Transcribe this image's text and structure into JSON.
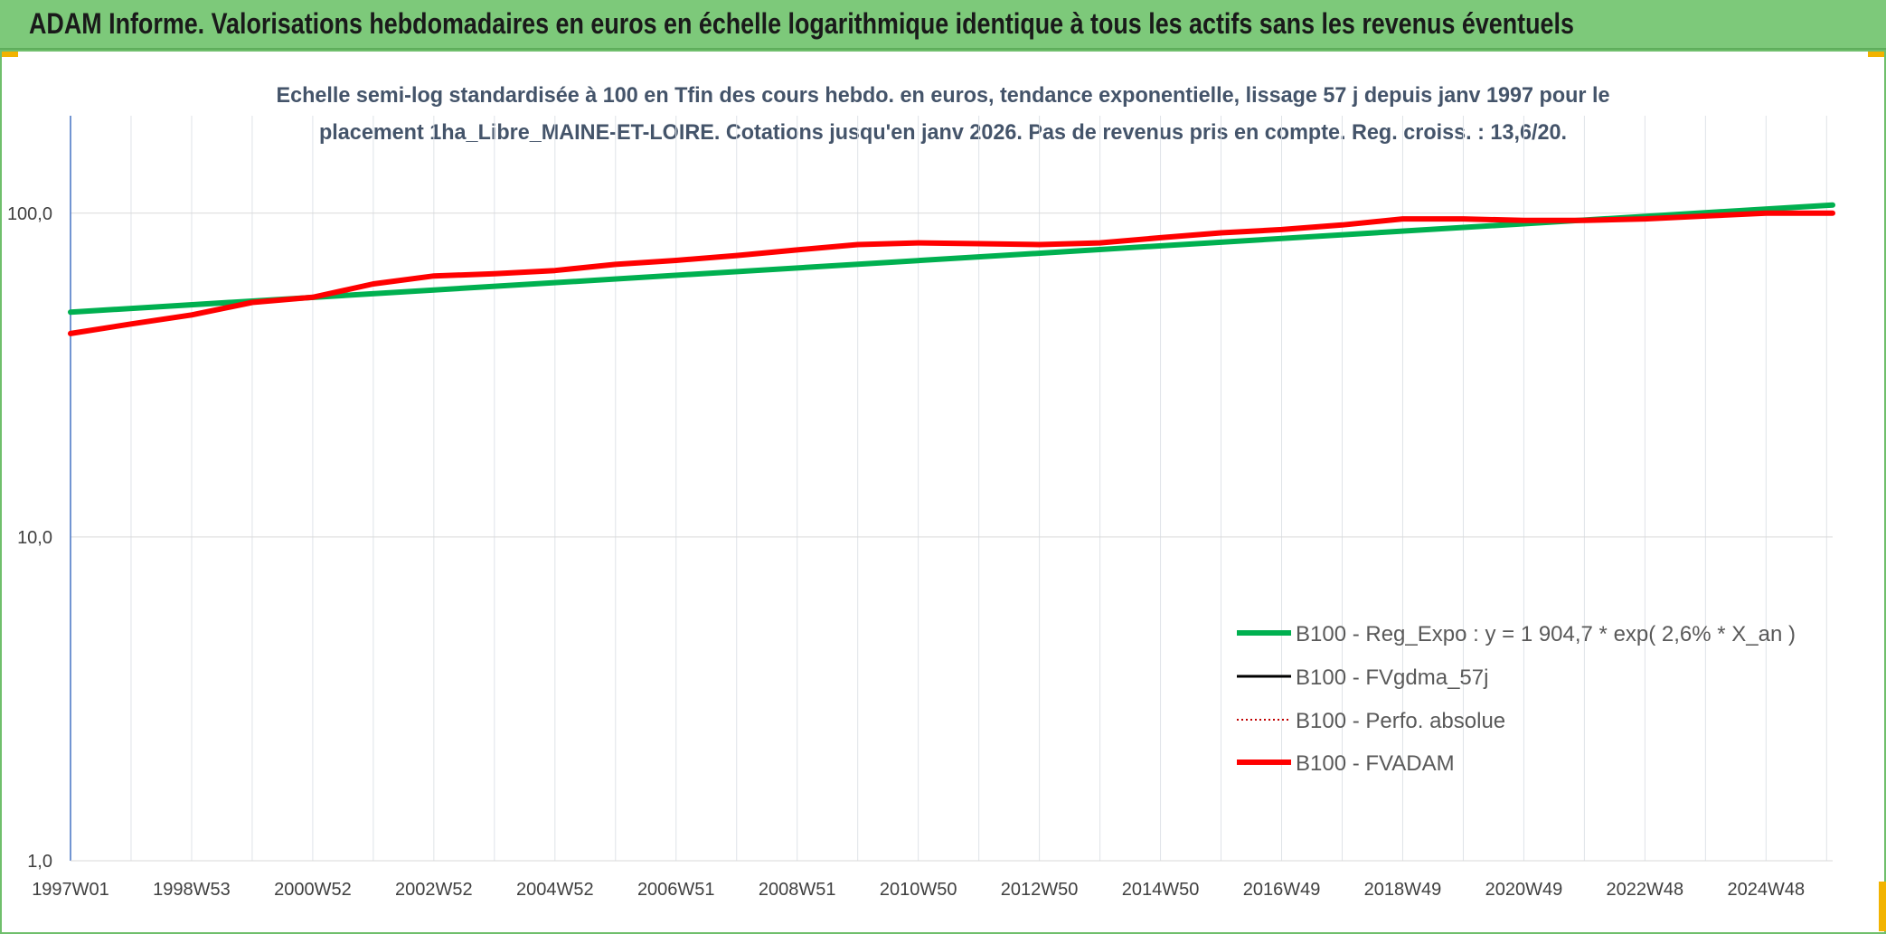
{
  "banner": {
    "title": "ADAM Informe. Valorisations hebdomadaires en euros en échelle logarithmique identique à tous les actifs sans les revenus éventuels"
  },
  "colors": {
    "banner_bg": "#7dc97a",
    "corner_accent": "#f2b300",
    "reg_expo": "#00b050",
    "fvgdma": "#000000",
    "perfo": "#c00000",
    "fvadam": "#ff0000",
    "axis_text": "#404040",
    "title_text": "#44546a"
  },
  "chart_data": {
    "type": "line",
    "title_lines": [
      "Echelle semi-log standardisée à 100 en Tfin des cours hebdo. en euros, tendance exponentielle, lissage 57 j depuis janv 1997 pour le",
      "placement 1ha_Libre_MAINE-ET-LOIRE. Cotations jusqu'en janv 2026. Pas de revenus pris en compte. Reg. croiss. : 13,6/20."
    ],
    "y_scale": "log",
    "ylim": [
      1,
      200
    ],
    "y_ticks": [
      1,
      10,
      100
    ],
    "y_tick_labels": [
      "1,0",
      "10,0",
      "100,0"
    ],
    "xlim": [
      0,
      29.1
    ],
    "x_ticks": [
      0,
      2,
      4,
      6,
      8,
      10,
      12,
      14,
      16,
      18,
      20,
      22,
      24,
      26,
      28
    ],
    "x_tick_labels": [
      "1997W01",
      "1998W53",
      "2000W52",
      "2002W52",
      "2004W52",
      "2006W51",
      "2008W51",
      "2010W50",
      "2012W50",
      "2014W50",
      "2016W49",
      "2018W49",
      "2020W49",
      "2022W48",
      "2024W48"
    ],
    "legend_position": "bottom-right",
    "series": [
      {
        "name": "B100 - Reg_Expo : y = 1 904,7 * exp( 2,6% *  X_an )",
        "style": "solid-thick",
        "x": [
          0,
          29.1
        ],
        "y": [
          49.5,
          106
        ]
      },
      {
        "name": "B100 - FVgdma_57j",
        "style": "solid-thin",
        "x": [],
        "y": []
      },
      {
        "name": "B100 - Perfo. absolue",
        "style": "dotted",
        "x": [],
        "y": []
      },
      {
        "name": "B100 - FVADAM",
        "style": "solid-thick",
        "x": [
          0,
          1,
          2,
          3,
          4,
          5,
          6,
          7,
          8,
          9,
          10,
          11,
          12,
          13,
          14,
          15,
          16,
          17,
          18,
          19,
          20,
          21,
          22,
          23,
          24,
          25,
          26,
          27,
          28,
          29.1
        ],
        "y": [
          42.5,
          45.5,
          48.5,
          53,
          55,
          60.5,
          64,
          65,
          66.5,
          69.5,
          71.5,
          74,
          77,
          80,
          81,
          80.5,
          80,
          81,
          84,
          87,
          89,
          92,
          96,
          96,
          95,
          95,
          96,
          98,
          100,
          100
        ]
      }
    ]
  }
}
